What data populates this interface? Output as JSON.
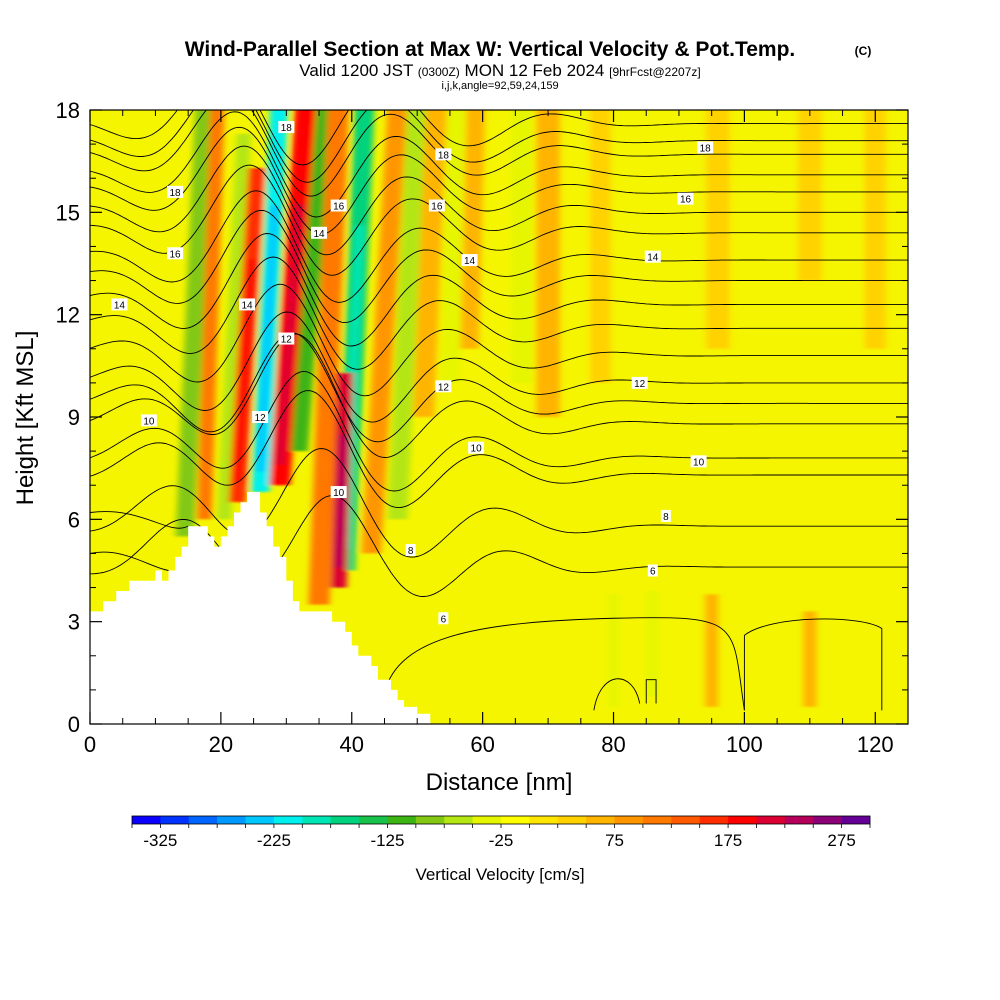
{
  "header": {
    "title": "Wind-Parallel Section at Max W: Vertical Velocity & Pot.Temp.",
    "copyright": "(C)",
    "valid_prefix": "Valid 1200 JST",
    "valid_utc": "(0300Z)",
    "valid_date": "MON 12 Feb 2024",
    "forecast": "[9hrFcst@2207z]",
    "indices": "i,j,k,angle=92,59,24,159"
  },
  "chart_data": {
    "type": "heatmap",
    "xlabel": "Distance [nm]",
    "ylabel": "Height [Kft MSL]",
    "xlim": [
      0,
      125
    ],
    "ylim": [
      0,
      18
    ],
    "xticks": [
      "0",
      "20",
      "40",
      "60",
      "80",
      "100",
      "120"
    ],
    "yticks": [
      "0",
      "3",
      "6",
      "9",
      "12",
      "15",
      "18"
    ],
    "colorbar": {
      "label": "Vertical Velocity [cm/s]",
      "tick_labels": [
        "-325",
        "-225",
        "-125",
        "-25",
        "75",
        "175",
        "275"
      ],
      "min": -350,
      "max": 300,
      "step": 25,
      "colors": [
        "#0a00ff",
        "#0033ff",
        "#0066ff",
        "#0099ff",
        "#00c8ff",
        "#00f0f0",
        "#00e6b4",
        "#00d27d",
        "#19c34b",
        "#3cb414",
        "#82c814",
        "#b4e614",
        "#e6f500",
        "#ffff00",
        "#ffe600",
        "#ffd200",
        "#ffb400",
        "#ff9600",
        "#ff7800",
        "#ff5a00",
        "#ff2d00",
        "#ff0000",
        "#dc0032",
        "#b4005a",
        "#8c0078",
        "#640096"
      ]
    },
    "terrain": [
      [
        0,
        3.3
      ],
      [
        2,
        3.3
      ],
      [
        2,
        3.6
      ],
      [
        4,
        3.6
      ],
      [
        4,
        3.9
      ],
      [
        6,
        3.9
      ],
      [
        6,
        4.2
      ],
      [
        10,
        4.2
      ],
      [
        10,
        4.5
      ],
      [
        11,
        4.5
      ],
      [
        11,
        4.2
      ],
      [
        12,
        4.2
      ],
      [
        12,
        4.5
      ],
      [
        13,
        4.5
      ],
      [
        13,
        4.9
      ],
      [
        14,
        4.9
      ],
      [
        14,
        5.2
      ],
      [
        15,
        5.2
      ],
      [
        15,
        5.8
      ],
      [
        18,
        5.8
      ],
      [
        18,
        5.5
      ],
      [
        19,
        5.5
      ],
      [
        19,
        5.2
      ],
      [
        20,
        5.2
      ],
      [
        20,
        5.5
      ],
      [
        21,
        5.5
      ],
      [
        21,
        5.8
      ],
      [
        22,
        5.8
      ],
      [
        22,
        6.2
      ],
      [
        23,
        6.2
      ],
      [
        23,
        6.5
      ],
      [
        24,
        6.5
      ],
      [
        24,
        6.8
      ],
      [
        26,
        6.8
      ],
      [
        26,
        6.2
      ],
      [
        27,
        6.2
      ],
      [
        27,
        5.8
      ],
      [
        28,
        5.8
      ],
      [
        28,
        5.2
      ],
      [
        29,
        5.2
      ],
      [
        29,
        4.9
      ],
      [
        30,
        4.9
      ],
      [
        30,
        4.2
      ],
      [
        31,
        4.2
      ],
      [
        31,
        3.6
      ],
      [
        32,
        3.6
      ],
      [
        32,
        3.3
      ],
      [
        37,
        3.3
      ],
      [
        37,
        3.0
      ],
      [
        39,
        3.0
      ],
      [
        39,
        2.7
      ],
      [
        40,
        2.7
      ],
      [
        40,
        2.3
      ],
      [
        41,
        2.3
      ],
      [
        41,
        2.0
      ],
      [
        43,
        2.0
      ],
      [
        43,
        1.7
      ],
      [
        44,
        1.7
      ],
      [
        44,
        1.3
      ],
      [
        46,
        1.3
      ],
      [
        46,
        1.0
      ],
      [
        47,
        1.0
      ],
      [
        47,
        0.7
      ],
      [
        48,
        0.7
      ],
      [
        48,
        0.5
      ],
      [
        50,
        0.5
      ],
      [
        50,
        0.3
      ],
      [
        52,
        0.3
      ],
      [
        52,
        0.0
      ]
    ],
    "velocity_features": [
      {
        "x": 14.5,
        "ybot": 5.5,
        "ytop": 18,
        "lean": 3,
        "width": 1.4,
        "value": -100
      },
      {
        "x": 17.5,
        "ybot": 6.0,
        "ytop": 18,
        "lean": 2,
        "width": 1.1,
        "value": 100
      },
      {
        "x": 20.5,
        "ybot": 6.0,
        "ytop": 17,
        "lean": 3,
        "width": 1.1,
        "value": -75
      },
      {
        "x": 22.5,
        "ybot": 6.5,
        "ytop": 16,
        "lean": 3,
        "width": 1.3,
        "value": 150
      },
      {
        "x": 26.0,
        "ybot": 6.8,
        "ytop": 18,
        "lean": 3,
        "width": 1.4,
        "value": -225
      },
      {
        "x": 29.0,
        "ybot": 7.0,
        "ytop": 18,
        "lean": 4,
        "width": 1.6,
        "value": 175
      },
      {
        "x": 32.0,
        "ybot": 8.0,
        "ytop": 18,
        "lean": 4,
        "width": 1.3,
        "value": -125
      },
      {
        "x": 35.0,
        "ybot": 3.5,
        "ytop": 18,
        "lean": 3,
        "width": 1.6,
        "value": 100
      },
      {
        "x": 39.0,
        "ybot": 4.5,
        "ytop": 18,
        "lean": 3,
        "width": 1.5,
        "value": -175
      },
      {
        "x": 38.0,
        "ybot": 4.0,
        "ytop": 10,
        "lean": 1,
        "width": 1.2,
        "value": 200
      },
      {
        "x": 43.0,
        "ybot": 5.0,
        "ytop": 18,
        "lean": 4,
        "width": 1.5,
        "value": 75
      },
      {
        "x": 47.0,
        "ybot": 6.0,
        "ytop": 18,
        "lean": 3,
        "width": 1.5,
        "value": -75
      },
      {
        "x": 51.0,
        "ybot": 9.0,
        "ytop": 18,
        "lean": 2,
        "width": 1.6,
        "value": 50
      },
      {
        "x": 55.0,
        "ybot": 10.0,
        "ytop": 18,
        "lean": 1,
        "width": 1.4,
        "value": -50
      },
      {
        "x": 58.0,
        "ybot": 11.0,
        "ytop": 18,
        "lean": 1,
        "width": 1.4,
        "value": 50
      },
      {
        "x": 66.0,
        "ybot": 10.0,
        "ytop": 18,
        "lean": 0,
        "width": 1.6,
        "value": -50
      },
      {
        "x": 70.0,
        "ybot": 9.0,
        "ytop": 18,
        "lean": 0,
        "width": 1.8,
        "value": 50
      },
      {
        "x": 78.0,
        "ybot": 10.0,
        "ytop": 18,
        "lean": 0,
        "width": 1.6,
        "value": 25
      },
      {
        "x": 80.0,
        "ybot": 0.5,
        "ytop": 3.5,
        "lean": 0,
        "width": 0.8,
        "value": -50
      },
      {
        "x": 86.0,
        "ybot": 0.8,
        "ytop": 3.6,
        "lean": 0,
        "width": 0.9,
        "value": -50
      },
      {
        "x": 96.0,
        "ybot": 11.0,
        "ytop": 18,
        "lean": 0,
        "width": 1.8,
        "value": 25
      },
      {
        "x": 110.0,
        "ybot": 13.0,
        "ytop": 18,
        "lean": 0,
        "width": 1.8,
        "value": 25
      },
      {
        "x": 120.0,
        "ybot": 11.0,
        "ytop": 18,
        "lean": 0,
        "width": 1.6,
        "value": 25
      },
      {
        "x": 95.0,
        "ybot": 0.5,
        "ytop": 3.5,
        "lean": 0,
        "width": 1.0,
        "value": 50
      },
      {
        "x": 110.0,
        "ybot": 0.5,
        "ytop": 3.0,
        "lean": 0,
        "width": 1.0,
        "value": 50
      }
    ],
    "theta_contours": [
      {
        "base": 4.6,
        "label": "6",
        "label_pos": [
          86,
          4.5
        ]
      },
      {
        "base": 5.8,
        "label": "8",
        "label_pos": [
          88,
          6.1
        ]
      },
      {
        "base": 7.3
      },
      {
        "base": 7.8,
        "label": "10",
        "label_pos": [
          93,
          7.7
        ]
      },
      {
        "base": 8.8
      },
      {
        "base": 9.4
      },
      {
        "base": 10.0,
        "label": "12",
        "label_pos": [
          84,
          10.0
        ]
      },
      {
        "base": 10.8
      },
      {
        "base": 11.6
      },
      {
        "base": 12.3
      },
      {
        "base": 13.0
      },
      {
        "base": 13.6,
        "label": "14",
        "label_pos": [
          86,
          13.7
        ]
      },
      {
        "base": 14.4
      },
      {
        "base": 15.0
      },
      {
        "base": 15.6,
        "label": "16",
        "label_pos": [
          91,
          15.4
        ]
      },
      {
        "base": 16.1
      },
      {
        "base": 16.7
      },
      {
        "base": 17.1,
        "label": "18",
        "label_pos": [
          94,
          16.9
        ]
      },
      {
        "base": 17.6
      }
    ],
    "left_labels": [
      {
        "text": "10",
        "x": 9,
        "y": 8.9
      },
      {
        "text": "14",
        "x": 4.5,
        "y": 12.3
      },
      {
        "text": "16",
        "x": 13,
        "y": 13.8
      },
      {
        "text": "18",
        "x": 13,
        "y": 15.6
      },
      {
        "text": "14",
        "x": 24,
        "y": 12.3
      },
      {
        "text": "12",
        "x": 26,
        "y": 9.0
      },
      {
        "text": "12",
        "x": 30,
        "y": 11.3
      },
      {
        "text": "10",
        "x": 38,
        "y": 6.8
      },
      {
        "text": "14",
        "x": 35,
        "y": 14.4
      },
      {
        "text": "16",
        "x": 38,
        "y": 15.2
      },
      {
        "text": "18",
        "x": 30,
        "y": 17.5
      },
      {
        "text": "18",
        "x": 54,
        "y": 16.7
      },
      {
        "text": "16",
        "x": 53,
        "y": 15.2
      },
      {
        "text": "14",
        "x": 58,
        "y": 13.6
      },
      {
        "text": "12",
        "x": 54,
        "y": 9.9
      },
      {
        "text": "10",
        "x": 59,
        "y": 8.1
      },
      {
        "text": "8",
        "x": 49,
        "y": 5.1
      },
      {
        "text": "6",
        "x": 54,
        "y": 3.1
      }
    ]
  }
}
